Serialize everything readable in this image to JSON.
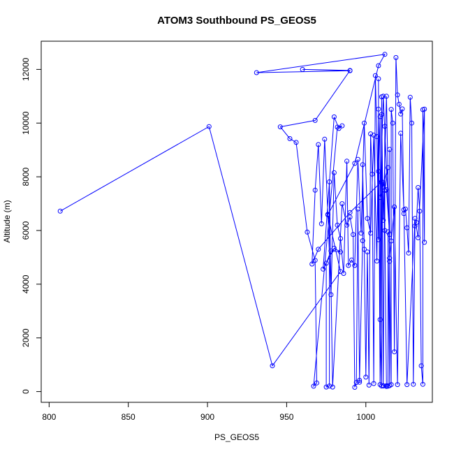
{
  "chart_data": {
    "type": "line",
    "title": "ATOM3 Southbound PS_GEOS5",
    "xlabel": "PS_GEOS5",
    "ylabel": "Altitude (m)",
    "xlim": [
      795,
      1042
    ],
    "ylim": [
      -400,
      13050
    ],
    "xticks": [
      800,
      850,
      900,
      950,
      1000
    ],
    "yticks": [
      0,
      2000,
      4000,
      6000,
      8000,
      10000,
      12000
    ],
    "colors": {
      "series": "#0000ff",
      "axis": "#000000",
      "background": "#ffffff"
    },
    "marker": "open-circle",
    "grid": false,
    "series": [
      {
        "x": [
          807,
          901,
          941,
          984,
          976,
          993,
          1008,
          1012,
          931,
          990,
          960,
          990,
          968,
          946,
          952,
          956,
          963,
          968,
          969,
          967,
          982,
          985,
          983,
          980,
          973,
          980,
          984,
          978,
          975,
          975,
          977,
          977,
          979,
          985,
          988,
          990,
          992,
          993,
          994,
          995,
          996,
          996,
          998,
          998,
          999,
          1000,
          1001,
          1002,
          1003,
          1004,
          1005,
          1006,
          1007,
          1008,
          1008,
          1008,
          1009,
          1009,
          1010,
          1010,
          1011,
          1011,
          1012,
          1012,
          1013,
          1013,
          1014,
          1014,
          1015,
          1015,
          1015,
          1016,
          1016,
          1017,
          1018,
          1019,
          1020,
          1021,
          1022,
          1023,
          1024,
          1025,
          1026,
          1027,
          1028,
          1029,
          1030,
          1031,
          1032,
          1033,
          1034,
          1035,
          1036,
          1036,
          1037,
          1037,
          1033,
          1031,
          1026,
          1024,
          1022,
          1020,
          1018,
          1016,
          1015,
          1013,
          1011,
          1010,
          1009,
          1008,
          1007,
          1005,
          1003,
          1001,
          999,
          997,
          995,
          993,
          991,
          989,
          988,
          986,
          984,
          982,
          980,
          978,
          976,
          974,
          972,
          970,
          968,
          966,
          970,
          990,
          1010,
          1013,
          1015,
          1011,
          1009,
          1014,
          1012
        ],
        "y": [
          6720,
          9870,
          960,
          4470,
          6580,
          8500,
          12140,
          12560,
          11880,
          11950,
          12000,
          11960,
          10100,
          9860,
          9420,
          9280,
          5940,
          4890,
          320,
          200,
          9850,
          9900,
          9800,
          10230,
          4560,
          5340,
          5200,
          5240,
          4780,
          170,
          210,
          7810,
          170,
          7000,
          6200,
          6500,
          5850,
          160,
          340,
          6800,
          420,
          350,
          5620,
          8450,
          5300,
          540,
          5200,
          240,
          9600,
          8100,
          300,
          11770,
          9500,
          5660,
          11650,
          8200,
          10240,
          2680,
          210,
          10980,
          210,
          220,
          9880,
          6000,
          220,
          190,
          200,
          5950,
          220,
          9020,
          4850,
          260,
          10510,
          10000,
          1480,
          12440,
          11050,
          10700,
          10340,
          10530,
          6630,
          6800,
          6100,
          5160,
          10960,
          10000,
          270,
          6170,
          6300,
          7600,
          6720,
          960,
          270,
          10500,
          5560,
          10520,
          5730,
          6450,
          260,
          6770,
          9620,
          260,
          6880,
          5610,
          4970,
          11000,
          6380,
          10320,
          260,
          10520,
          4860,
          9550,
          5900,
          6450,
          10000,
          5900,
          8650,
          4700,
          4900,
          4700,
          8580,
          4400,
          5700,
          6200,
          8150,
          3610,
          6600,
          9400,
          6250,
          9200,
          7500,
          4750,
          5300,
          6670,
          7820,
          7520,
          5850,
          11000,
          7230,
          8340,
          7490
        ]
      }
    ]
  }
}
